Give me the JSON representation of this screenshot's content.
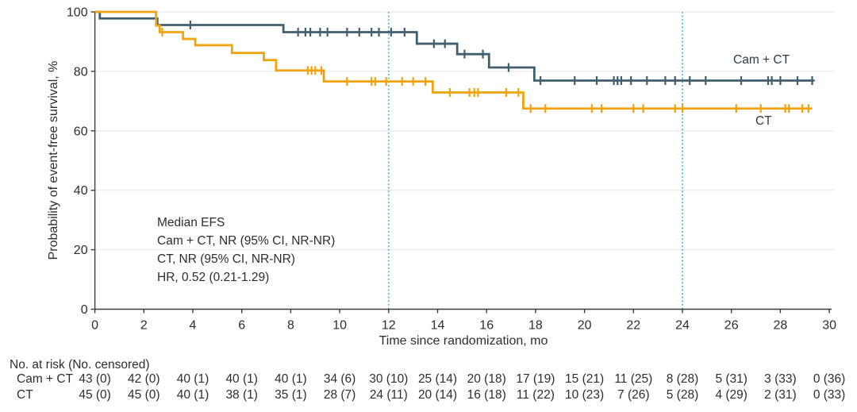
{
  "figure": {
    "type_note": "Kaplan-Meier event-free survival curve",
    "colors": {
      "camct_line": "#415e6e",
      "ct_line": "#f0a30c",
      "reference_line": "#41b6e6",
      "gridline": "#ebebeb",
      "axis": "#3c3c3c",
      "text": "#2e2e2e",
      "background": "#ffffff"
    }
  },
  "chart_data": {
    "type": "line",
    "subtype": "kaplan-meier-step",
    "title": "",
    "xlabel": "Time since randomization, mo",
    "ylabel": "Probability of event-free survival, %",
    "xlim": [
      0,
      30
    ],
    "ylim": [
      0,
      100
    ],
    "x_ticks": [
      0,
      2,
      4,
      6,
      8,
      10,
      12,
      14,
      16,
      18,
      20,
      22,
      24,
      26,
      28,
      30
    ],
    "y_ticks": [
      0,
      20,
      40,
      60,
      80,
      100
    ],
    "grid": "horizontal",
    "reference_lines_x": [
      12,
      24
    ],
    "legend_position": "direct-curve-labels",
    "annotations": [
      "Median EFS",
      "Cam + CT, NR (95% CI, NR-NR)",
      "CT, NR (95% CI, NR-NR)",
      "HR, 0.52 (0.21-1.29)"
    ],
    "series": [
      {
        "name": "Cam + CT",
        "color": "#415e6e",
        "steps": [
          [
            0,
            100
          ],
          [
            0.2,
            97.8
          ],
          [
            2.55,
            95.6
          ],
          [
            7.7,
            93.2
          ],
          [
            13.15,
            89.3
          ],
          [
            14.8,
            85.8
          ],
          [
            16.1,
            81.3
          ],
          [
            17.95,
            76.9
          ],
          [
            29.4,
            76.9
          ]
        ],
        "censors": [
          [
            3.9,
            95.6
          ],
          [
            8.3,
            93.2
          ],
          [
            8.6,
            93.2
          ],
          [
            8.8,
            93.2
          ],
          [
            9.2,
            93.2
          ],
          [
            9.5,
            93.2
          ],
          [
            10.3,
            93.2
          ],
          [
            10.8,
            93.2
          ],
          [
            11.3,
            93.2
          ],
          [
            11.6,
            93.2
          ],
          [
            12.1,
            93.2
          ],
          [
            12.65,
            93.2
          ],
          [
            13.85,
            89.3
          ],
          [
            14.3,
            89.3
          ],
          [
            15.1,
            85.8
          ],
          [
            15.85,
            85.8
          ],
          [
            16.9,
            81.3
          ],
          [
            18.2,
            76.9
          ],
          [
            19.6,
            76.9
          ],
          [
            20.5,
            76.9
          ],
          [
            21.2,
            76.9
          ],
          [
            21.35,
            76.9
          ],
          [
            21.5,
            76.9
          ],
          [
            21.9,
            76.9
          ],
          [
            22.55,
            76.9
          ],
          [
            23.3,
            76.9
          ],
          [
            23.7,
            76.9
          ],
          [
            24.3,
            76.9
          ],
          [
            24.95,
            76.9
          ],
          [
            26.4,
            76.9
          ],
          [
            27.5,
            76.9
          ],
          [
            27.65,
            76.9
          ],
          [
            28.0,
            76.9
          ],
          [
            28.7,
            76.9
          ],
          [
            29.3,
            76.9
          ]
        ]
      },
      {
        "name": "CT",
        "color": "#f0a30c",
        "steps": [
          [
            0,
            100
          ],
          [
            2.5,
            95.4
          ],
          [
            2.65,
            93.2
          ],
          [
            3.6,
            90.9
          ],
          [
            4.1,
            88.8
          ],
          [
            5.6,
            86.2
          ],
          [
            6.9,
            83.8
          ],
          [
            7.4,
            80.3
          ],
          [
            9.35,
            76.6
          ],
          [
            13.8,
            72.9
          ],
          [
            17.5,
            67.5
          ],
          [
            29.3,
            67.5
          ]
        ],
        "censors": [
          [
            2.75,
            93.2
          ],
          [
            8.7,
            80.3
          ],
          [
            8.85,
            80.3
          ],
          [
            9.0,
            80.3
          ],
          [
            9.25,
            80.3
          ],
          [
            10.3,
            76.6
          ],
          [
            11.3,
            76.6
          ],
          [
            11.45,
            76.6
          ],
          [
            11.9,
            76.6
          ],
          [
            12.55,
            76.6
          ],
          [
            13.0,
            76.6
          ],
          [
            13.5,
            76.6
          ],
          [
            14.5,
            72.9
          ],
          [
            15.3,
            72.9
          ],
          [
            15.5,
            72.9
          ],
          [
            15.65,
            72.9
          ],
          [
            16.8,
            72.9
          ],
          [
            17.3,
            72.9
          ],
          [
            17.8,
            67.5
          ],
          [
            18.4,
            67.5
          ],
          [
            20.3,
            67.5
          ],
          [
            20.7,
            67.5
          ],
          [
            22.0,
            67.5
          ],
          [
            22.4,
            67.5
          ],
          [
            23.7,
            67.5
          ],
          [
            24.0,
            67.5
          ],
          [
            26.2,
            67.5
          ],
          [
            27.2,
            67.5
          ],
          [
            28.2,
            67.5
          ],
          [
            28.35,
            67.5
          ],
          [
            28.9,
            67.5
          ],
          [
            29.15,
            67.5
          ]
        ]
      }
    ]
  },
  "risk_table": {
    "header": "No. at risk (No. censored)",
    "times": [
      0,
      2,
      4,
      6,
      8,
      10,
      12,
      14,
      16,
      18,
      20,
      22,
      24,
      26,
      28,
      30
    ],
    "rows": [
      {
        "label": "Cam + CT",
        "values": [
          "43 (0)",
          "42 (0)",
          "40 (1)",
          "40 (1)",
          "40 (1)",
          "34 (6)",
          "30 (10)",
          "25 (14)",
          "20 (18)",
          "17 (19)",
          "15 (21)",
          "11 (25)",
          "8 (28)",
          "5 (31)",
          "3 (33)",
          "0 (36)"
        ]
      },
      {
        "label": "CT",
        "values": [
          "45 (0)",
          "45 (0)",
          "40 (1)",
          "38 (1)",
          "35 (1)",
          "28 (7)",
          "24 (11)",
          "20 (14)",
          "16 (18)",
          "11 (22)",
          "10 (23)",
          "7 (26)",
          "5 (28)",
          "4 (29)",
          "2 (31)",
          "0 (33)"
        ]
      }
    ]
  }
}
